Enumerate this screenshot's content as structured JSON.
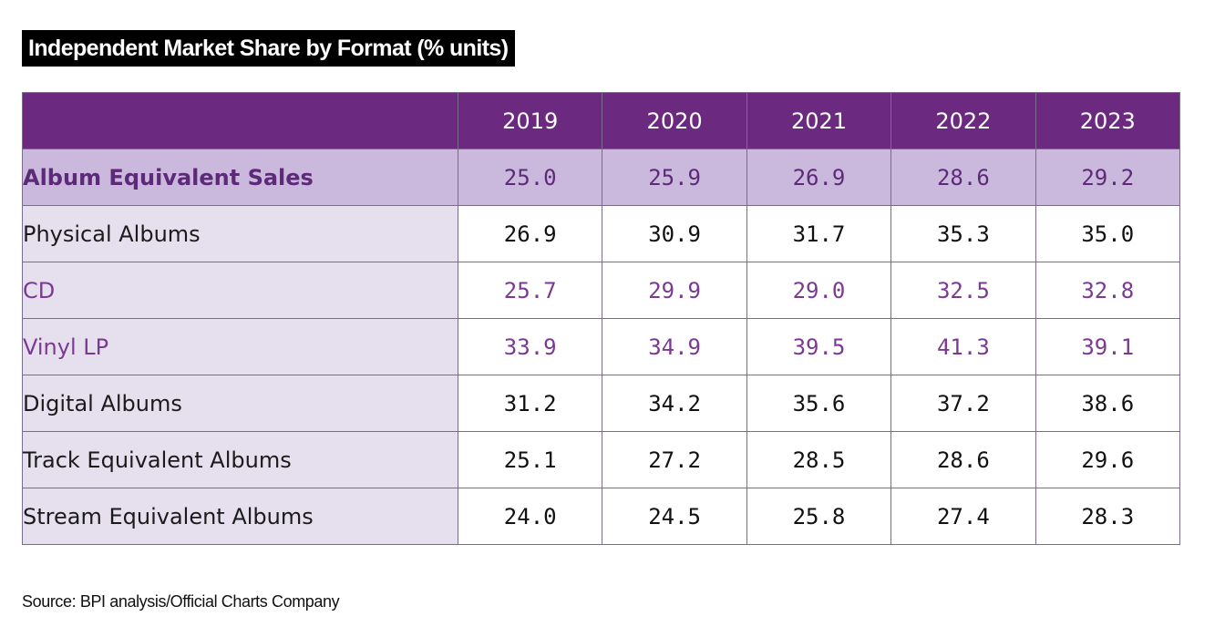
{
  "chart_data": {
    "type": "table",
    "title": "Independent Market Share by Format (% units)",
    "columns": [
      "2019",
      "2020",
      "2021",
      "2022",
      "2023"
    ],
    "rows": [
      {
        "label": "Album Equivalent Sales",
        "values": [
          "25.0",
          "25.9",
          "26.9",
          "28.6",
          "29.2"
        ],
        "style": "highlight"
      },
      {
        "label": "Physical Albums",
        "values": [
          "26.9",
          "30.9",
          "31.7",
          "35.3",
          "35.0"
        ],
        "style": "normal"
      },
      {
        "label": "CD",
        "values": [
          "25.7",
          "29.9",
          "29.0",
          "32.5",
          "32.8"
        ],
        "style": "sub"
      },
      {
        "label": "Vinyl LP",
        "values": [
          "33.9",
          "34.9",
          "39.5",
          "41.3",
          "39.1"
        ],
        "style": "sub"
      },
      {
        "label": "Digital Albums",
        "values": [
          "31.2",
          "34.2",
          "35.6",
          "37.2",
          "38.6"
        ],
        "style": "normal"
      },
      {
        "label": "Track Equivalent Albums",
        "values": [
          "25.1",
          "27.2",
          "28.5",
          "28.6",
          "29.6"
        ],
        "style": "normal"
      },
      {
        "label": "Stream Equivalent Albums",
        "values": [
          "24.0",
          "24.5",
          "25.8",
          "27.4",
          "28.3"
        ],
        "style": "normal"
      }
    ],
    "source": "Source: BPI analysis/Official Charts Company",
    "colors": {
      "header_bg": "#6b2a7f",
      "highlight_bg": "#cab9dc",
      "label_bg": "#e6e0ee",
      "accent_text": "#7a3a92"
    }
  }
}
